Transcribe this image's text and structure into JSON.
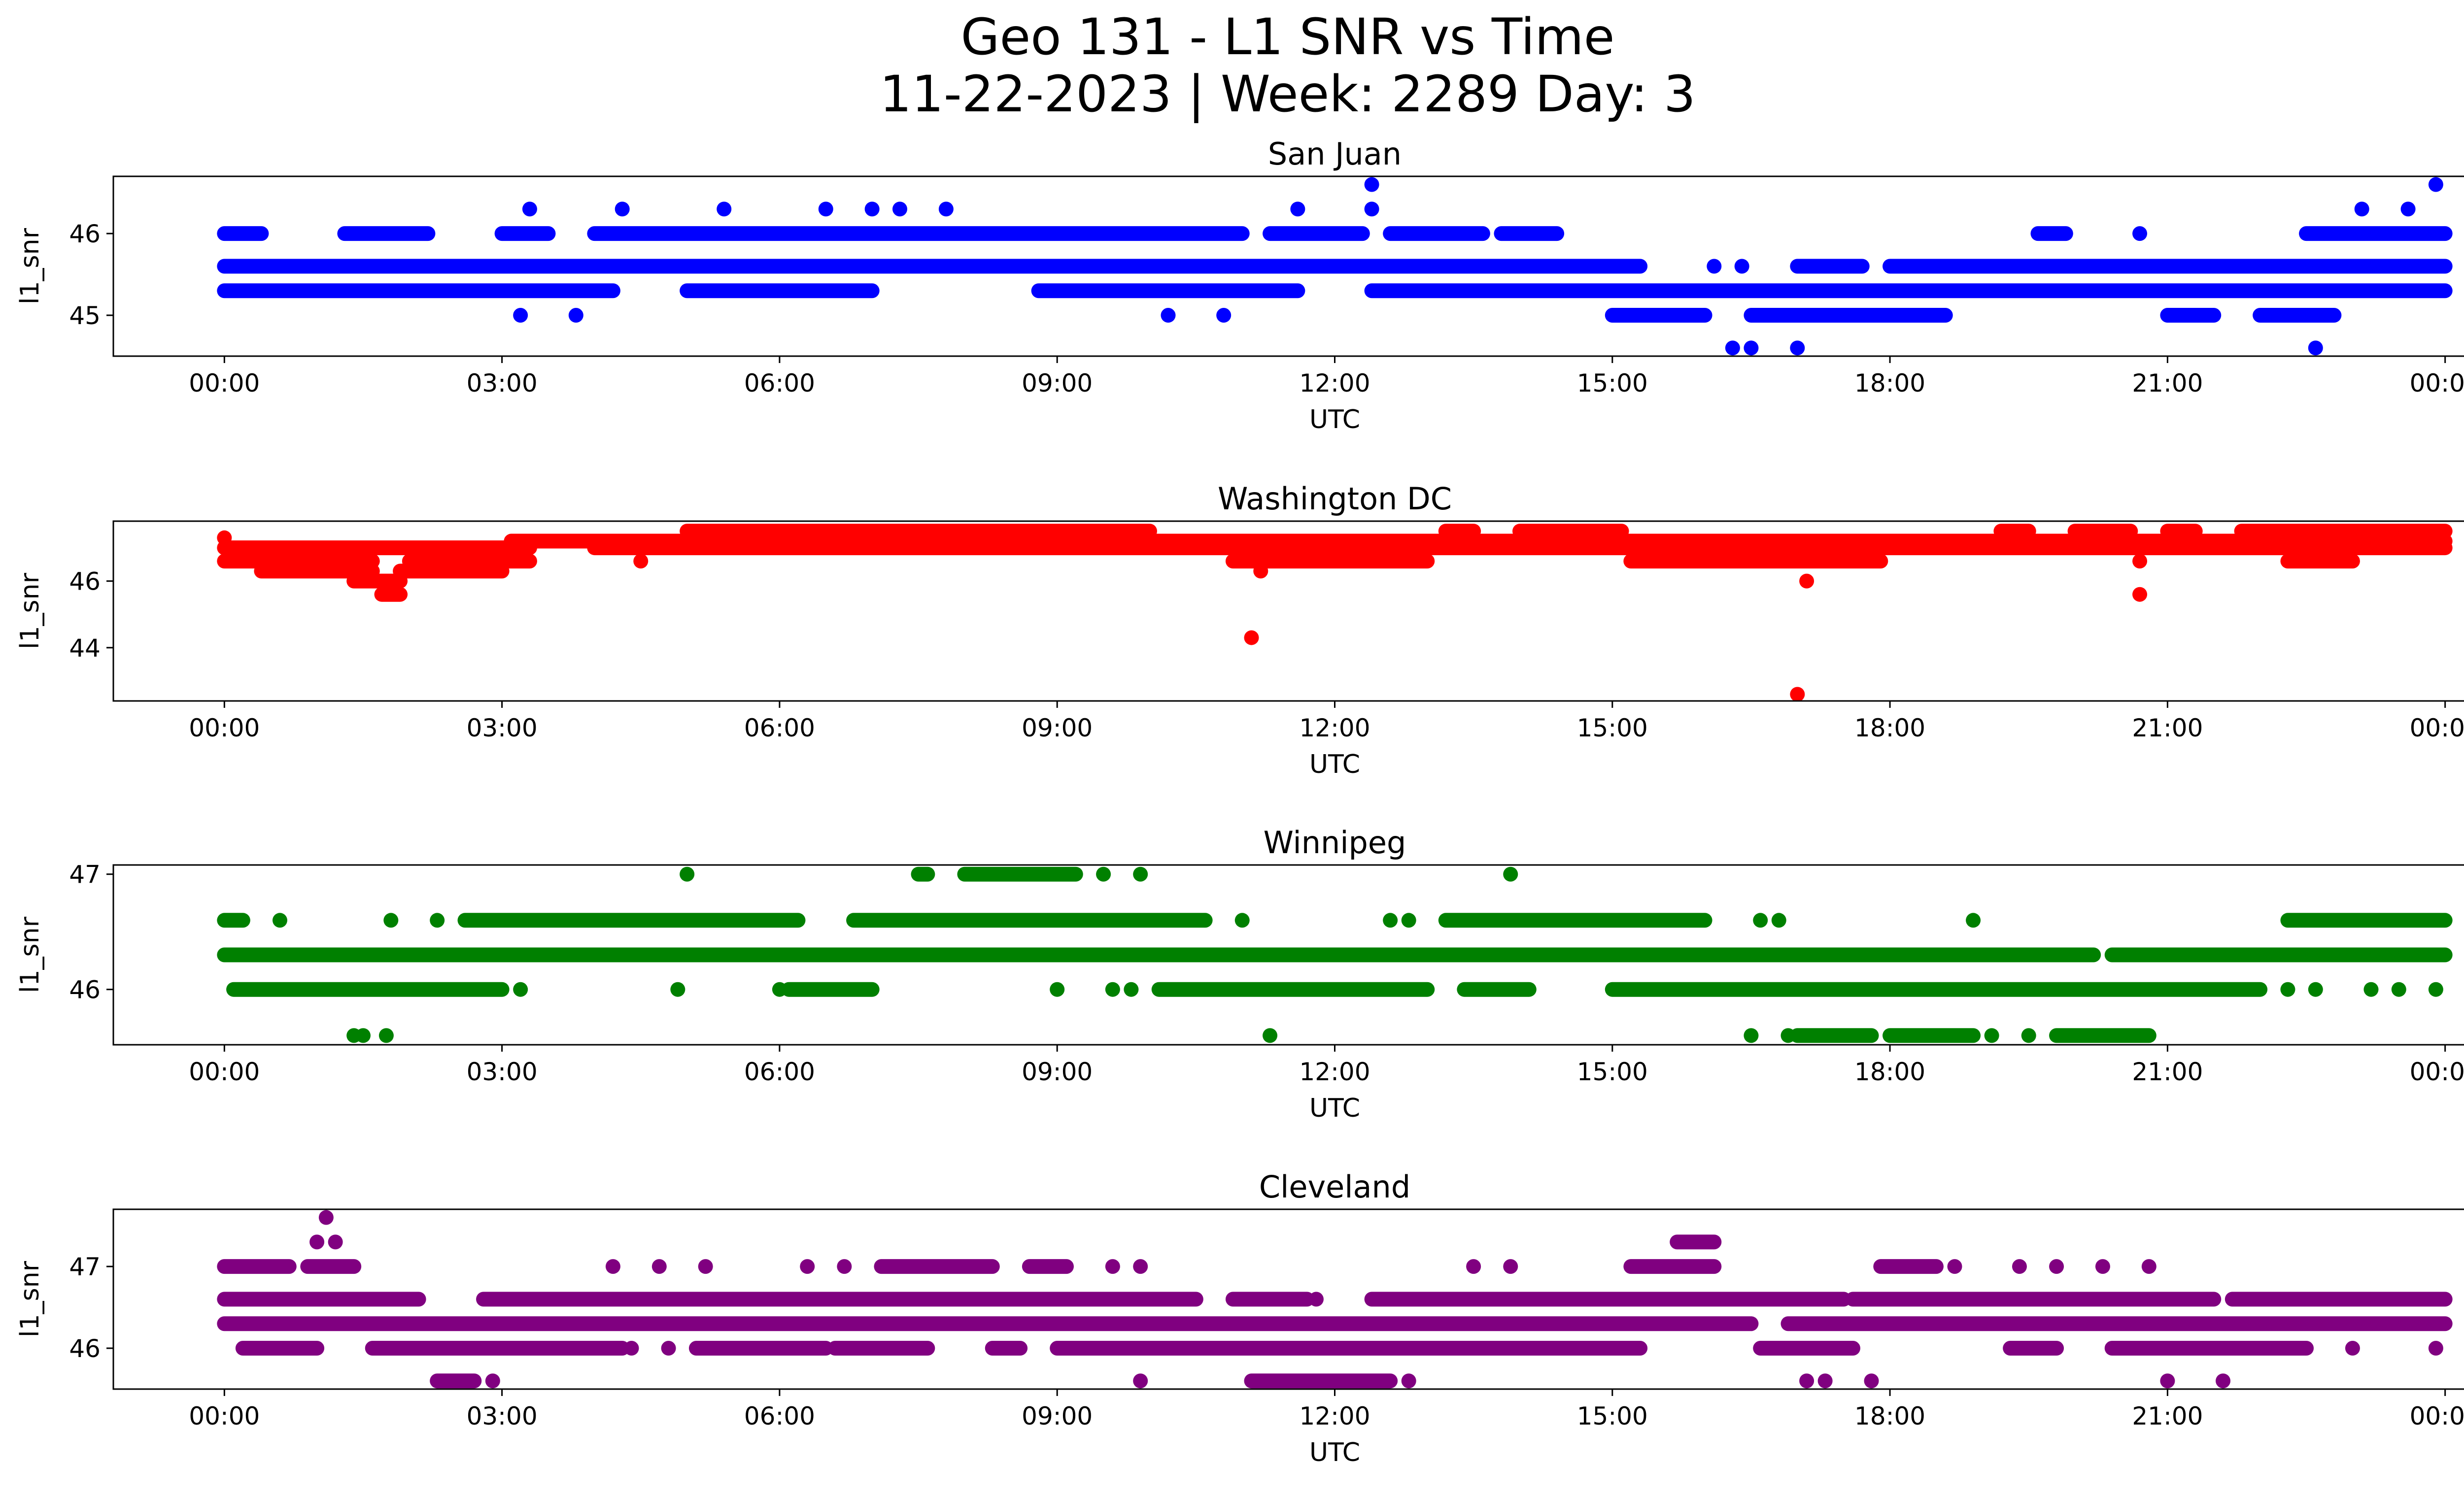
{
  "figure": {
    "title_line1": "Geo 131 - L1 SNR vs Time",
    "title_line2": "11-22-2023 | Week: 2289 Day: 3"
  },
  "chart_data": [
    {
      "type": "scatter",
      "title": "San Juan",
      "xlabel": "UTC",
      "ylabel": "l1_snr",
      "color": "#0000ff",
      "xlim_hours": [
        -1.2,
        25.2
      ],
      "ylim": [
        44.5,
        46.7
      ],
      "xticks_hours": [
        0,
        3,
        6,
        9,
        12,
        15,
        18,
        21,
        24
      ],
      "xtick_labels": [
        "00:00",
        "03:00",
        "06:00",
        "09:00",
        "12:00",
        "15:00",
        "18:00",
        "21:00",
        "00:00"
      ],
      "yticks": [
        45,
        46
      ],
      "ytick_labels": [
        "45",
        "46"
      ],
      "bands": [
        {
          "y": 45.6,
          "segments": [
            [
              0.0,
              15.3
            ],
            [
              17.0,
              17.7
            ],
            [
              18.0,
              24.0
            ]
          ]
        },
        {
          "y": 45.3,
          "segments": [
            [
              0.0,
              4.2
            ],
            [
              5.0,
              7.0
            ],
            [
              8.8,
              11.6
            ],
            [
              12.4,
              24.0
            ]
          ]
        },
        {
          "y": 46.0,
          "segments": [
            [
              0.0,
              0.4
            ],
            [
              1.3,
              2.2
            ],
            [
              3.0,
              3.5
            ],
            [
              4.0,
              11.0
            ],
            [
              11.3,
              12.3
            ],
            [
              12.6,
              13.6
            ],
            [
              13.8,
              14.4
            ],
            [
              19.6,
              19.9
            ],
            [
              22.5,
              24.0
            ]
          ]
        },
        {
          "y": 45.0,
          "segments": [
            [
              15.0,
              16.0
            ],
            [
              16.5,
              18.6
            ],
            [
              21.0,
              21.5
            ],
            [
              22.0,
              22.8
            ]
          ]
        }
      ],
      "outliers": [
        [
          3.3,
          46.3
        ],
        [
          3.2,
          45.0
        ],
        [
          3.8,
          45.0
        ],
        [
          4.3,
          46.3
        ],
        [
          5.4,
          46.3
        ],
        [
          6.5,
          46.3
        ],
        [
          7.0,
          46.3
        ],
        [
          7.3,
          46.3
        ],
        [
          7.8,
          46.3
        ],
        [
          10.2,
          45.0
        ],
        [
          10.8,
          45.0
        ],
        [
          11.6,
          46.3
        ],
        [
          12.4,
          46.6
        ],
        [
          12.4,
          46.3
        ],
        [
          16.3,
          44.6
        ],
        [
          16.5,
          44.6
        ],
        [
          17.0,
          44.6
        ],
        [
          22.6,
          44.6
        ],
        [
          23.1,
          46.3
        ],
        [
          23.6,
          46.3
        ],
        [
          23.9,
          46.6
        ],
        [
          16.1,
          45.6
        ],
        [
          16.4,
          45.6
        ],
        [
          20.7,
          46.0
        ]
      ]
    },
    {
      "type": "scatter",
      "title": "Washington DC",
      "xlabel": "UTC",
      "ylabel": "l1_snr",
      "color": "#ff0000",
      "xlim_hours": [
        -1.2,
        25.2
      ],
      "ylim": [
        42.4,
        47.8
      ],
      "xticks_hours": [
        0,
        3,
        6,
        9,
        12,
        15,
        18,
        21,
        24
      ],
      "xtick_labels": [
        "00:00",
        "03:00",
        "06:00",
        "09:00",
        "12:00",
        "15:00",
        "18:00",
        "21:00",
        "00:00"
      ],
      "yticks": [
        44,
        46
      ],
      "ytick_labels": [
        "44",
        "46"
      ],
      "bands": [
        {
          "y": 47.2,
          "segments": [
            [
              3.1,
              24.0
            ]
          ]
        },
        {
          "y": 47.0,
          "segments": [
            [
              0.0,
              3.3
            ],
            [
              4.0,
              24.0
            ]
          ]
        },
        {
          "y": 46.6,
          "segments": [
            [
              0.0,
              1.6
            ],
            [
              2.0,
              3.3
            ],
            [
              10.9,
              13.0
            ],
            [
              15.2,
              17.9
            ],
            [
              22.3,
              23.0
            ]
          ]
        },
        {
          "y": 46.3,
          "segments": [
            [
              0.4,
              1.6
            ],
            [
              1.9,
              3.0
            ]
          ]
        },
        {
          "y": 47.5,
          "segments": [
            [
              5.0,
              10.0
            ],
            [
              13.2,
              13.5
            ],
            [
              14.0,
              15.1
            ],
            [
              19.2,
              19.5
            ],
            [
              20.0,
              20.6
            ],
            [
              21.0,
              21.3
            ],
            [
              21.8,
              24.0
            ]
          ]
        },
        {
          "y": 46.0,
          "segments": [
            [
              1.4,
              1.9
            ]
          ]
        },
        {
          "y": 45.6,
          "segments": [
            [
              1.7,
              1.9
            ]
          ]
        }
      ],
      "outliers": [
        [
          0.0,
          47.3
        ],
        [
          11.1,
          44.3
        ],
        [
          17.0,
          42.6
        ],
        [
          17.1,
          46.0
        ],
        [
          11.2,
          46.3
        ],
        [
          20.7,
          45.6
        ],
        [
          20.7,
          46.6
        ],
        [
          4.5,
          46.6
        ]
      ]
    },
    {
      "type": "scatter",
      "title": "Winnipeg",
      "xlabel": "UTC",
      "ylabel": "l1_snr",
      "color": "#008000",
      "xlim_hours": [
        -1.2,
        25.2
      ],
      "ylim": [
        45.52,
        47.08
      ],
      "xticks_hours": [
        0,
        3,
        6,
        9,
        12,
        15,
        18,
        21,
        24
      ],
      "xtick_labels": [
        "00:00",
        "03:00",
        "06:00",
        "09:00",
        "12:00",
        "15:00",
        "18:00",
        "21:00",
        "00:00"
      ],
      "yticks": [
        46,
        47
      ],
      "ytick_labels": [
        "46",
        "47"
      ],
      "bands": [
        {
          "y": 46.3,
          "segments": [
            [
              0.0,
              20.2
            ],
            [
              20.4,
              24.0
            ]
          ]
        },
        {
          "y": 46.0,
          "segments": [
            [
              0.1,
              3.0
            ],
            [
              6.1,
              7.0
            ],
            [
              10.1,
              13.0
            ],
            [
              13.4,
              14.1
            ],
            [
              15.0,
              22.0
            ]
          ]
        },
        {
          "y": 46.6,
          "segments": [
            [
              0.0,
              0.2
            ],
            [
              2.6,
              6.2
            ],
            [
              6.8,
              10.6
            ],
            [
              13.2,
              16.0
            ],
            [
              22.3,
              24.0
            ]
          ]
        },
        {
          "y": 47.0,
          "segments": [
            [
              7.5,
              7.6
            ],
            [
              8.0,
              9.2
            ]
          ]
        },
        {
          "y": 45.6,
          "segments": [
            [
              17.0,
              17.8
            ],
            [
              18.0,
              18.9
            ],
            [
              19.8,
              20.8
            ]
          ]
        }
      ],
      "outliers": [
        [
          0.6,
          46.6
        ],
        [
          1.8,
          46.6
        ],
        [
          2.3,
          46.6
        ],
        [
          1.4,
          45.6
        ],
        [
          1.5,
          45.6
        ],
        [
          1.75,
          45.6
        ],
        [
          3.2,
          46.0
        ],
        [
          4.9,
          46.0
        ],
        [
          5.0,
          47.0
        ],
        [
          6.0,
          46.0
        ],
        [
          9.0,
          46.0
        ],
        [
          9.6,
          46.0
        ],
        [
          9.8,
          46.0
        ],
        [
          9.5,
          47.0
        ],
        [
          9.9,
          47.0
        ],
        [
          11.0,
          46.6
        ],
        [
          11.3,
          45.6
        ],
        [
          12.6,
          46.6
        ],
        [
          12.8,
          46.6
        ],
        [
          13.9,
          47.0
        ],
        [
          16.5,
          45.6
        ],
        [
          16.9,
          45.6
        ],
        [
          16.6,
          46.6
        ],
        [
          16.8,
          46.6
        ],
        [
          18.9,
          46.6
        ],
        [
          19.1,
          45.6
        ],
        [
          19.5,
          45.6
        ],
        [
          22.3,
          46.0
        ],
        [
          22.6,
          46.0
        ],
        [
          23.2,
          46.0
        ],
        [
          23.5,
          46.0
        ],
        [
          23.9,
          46.0
        ]
      ]
    },
    {
      "type": "scatter",
      "title": "Cleveland",
      "xlabel": "UTC",
      "ylabel": "l1_snr",
      "color": "#800080",
      "xlim_hours": [
        -1.2,
        25.2
      ],
      "ylim": [
        45.5,
        47.7
      ],
      "xticks_hours": [
        0,
        3,
        6,
        9,
        12,
        15,
        18,
        21,
        24
      ],
      "xtick_labels": [
        "00:00",
        "03:00",
        "06:00",
        "09:00",
        "12:00",
        "15:00",
        "18:00",
        "21:00",
        "00:00"
      ],
      "yticks": [
        46,
        47
      ],
      "ytick_labels": [
        "46",
        "47"
      ],
      "bands": [
        {
          "y": 46.3,
          "segments": [
            [
              0.0,
              16.5
            ],
            [
              16.9,
              24.0
            ]
          ]
        },
        {
          "y": 46.6,
          "segments": [
            [
              0.0,
              2.1
            ],
            [
              2.8,
              10.5
            ],
            [
              10.9,
              11.7
            ],
            [
              12.4,
              17.5
            ],
            [
              17.6,
              21.5
            ],
            [
              21.7,
              24.0
            ]
          ]
        },
        {
          "y": 46.0,
          "segments": [
            [
              0.2,
              1.0
            ],
            [
              1.6,
              4.3
            ],
            [
              5.1,
              6.5
            ],
            [
              6.6,
              7.6
            ],
            [
              8.3,
              8.6
            ],
            [
              9.0,
              15.3
            ],
            [
              16.6,
              17.6
            ],
            [
              19.3,
              19.8
            ],
            [
              20.4,
              22.5
            ]
          ]
        },
        {
          "y": 47.0,
          "segments": [
            [
              0.0,
              0.7
            ],
            [
              0.9,
              1.4
            ],
            [
              7.1,
              8.3
            ],
            [
              8.7,
              9.1
            ],
            [
              15.2,
              16.1
            ],
            [
              17.9,
              18.5
            ]
          ]
        },
        {
          "y": 45.6,
          "segments": [
            [
              2.3,
              2.7
            ],
            [
              11.1,
              12.6
            ]
          ]
        },
        {
          "y": 47.3,
          "segments": [
            [
              15.7,
              16.1
            ]
          ]
        }
      ],
      "outliers": [
        [
          1.1,
          47.6
        ],
        [
          1.0,
          47.3
        ],
        [
          1.2,
          47.3
        ],
        [
          2.9,
          45.6
        ],
        [
          4.2,
          47.0
        ],
        [
          4.7,
          47.0
        ],
        [
          5.2,
          47.0
        ],
        [
          6.3,
          47.0
        ],
        [
          6.7,
          47.0
        ],
        [
          9.6,
          47.0
        ],
        [
          9.9,
          47.0
        ],
        [
          9.9,
          45.6
        ],
        [
          11.5,
          46.6
        ],
        [
          11.8,
          46.6
        ],
        [
          12.8,
          45.6
        ],
        [
          13.5,
          47.0
        ],
        [
          13.9,
          47.0
        ],
        [
          17.1,
          45.6
        ],
        [
          17.3,
          45.6
        ],
        [
          17.8,
          45.6
        ],
        [
          18.7,
          47.0
        ],
        [
          19.4,
          47.0
        ],
        [
          19.8,
          47.0
        ],
        [
          20.3,
          47.0
        ],
        [
          20.8,
          47.0
        ],
        [
          21.0,
          45.6
        ],
        [
          21.6,
          45.6
        ],
        [
          23.0,
          46.0
        ],
        [
          23.9,
          46.0
        ],
        [
          4.4,
          46.0
        ],
        [
          4.8,
          46.0
        ]
      ]
    }
  ]
}
